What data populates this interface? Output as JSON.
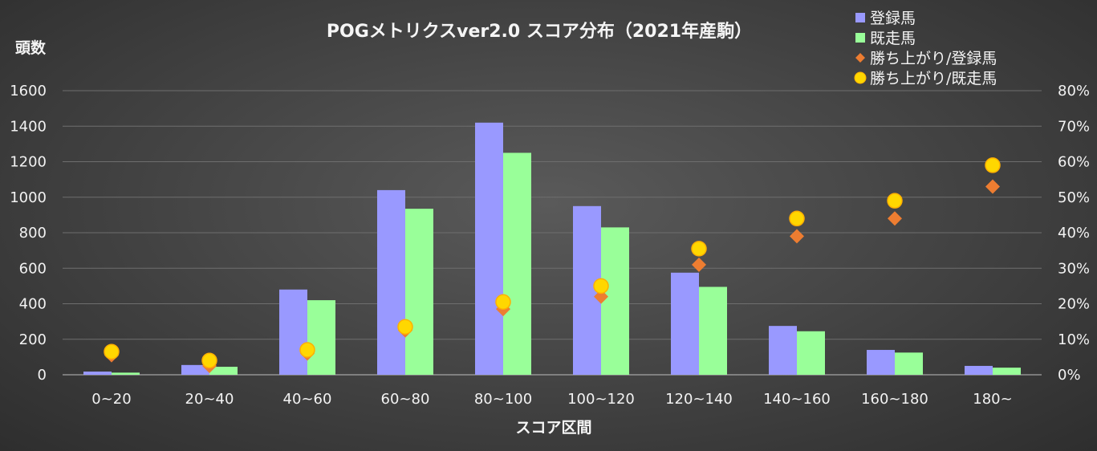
{
  "chart_data": {
    "type": "bar",
    "title": "POGメトリクスver2.0 スコア分布（2021年産駒）",
    "xlabel": "スコア区間",
    "ylabel": "頭数",
    "categories": [
      "0~20",
      "20~40",
      "40~60",
      "60~80",
      "80~100",
      "100~120",
      "120~140",
      "140~160",
      "160~180",
      "180~"
    ],
    "ylim": [
      0,
      1600
    ],
    "y_ticks": [
      "0",
      "200",
      "400",
      "600",
      "800",
      "1000",
      "1200",
      "1400",
      "1600"
    ],
    "y2lim": [
      0,
      0.8
    ],
    "y2_ticks": [
      "0%",
      "10%",
      "20%",
      "30%",
      "40%",
      "50%",
      "60%",
      "70%",
      "80%"
    ],
    "grid": true,
    "legend_position": "top-right",
    "series": [
      {
        "name": "登録馬",
        "kind": "bar",
        "axis": "left",
        "color": "#9999ff",
        "values": [
          18,
          55,
          480,
          1040,
          1420,
          950,
          575,
          275,
          140,
          50
        ]
      },
      {
        "name": "既走馬",
        "kind": "bar",
        "axis": "left",
        "color": "#99ff99",
        "values": [
          12,
          45,
          420,
          935,
          1250,
          830,
          495,
          245,
          125,
          40
        ]
      },
      {
        "name": "勝ち上がり/登録馬",
        "kind": "scatter",
        "marker": "diamond",
        "axis": "right",
        "color": "#ed7d31",
        "values": [
          0.055,
          0.025,
          0.06,
          0.125,
          0.185,
          0.22,
          0.31,
          0.39,
          0.44,
          0.53
        ]
      },
      {
        "name": "勝ち上がり/既走馬",
        "kind": "scatter",
        "marker": "circle",
        "axis": "right",
        "color": "#ffd700",
        "values": [
          0.065,
          0.04,
          0.07,
          0.135,
          0.205,
          0.25,
          0.355,
          0.44,
          0.49,
          0.59
        ]
      }
    ]
  }
}
